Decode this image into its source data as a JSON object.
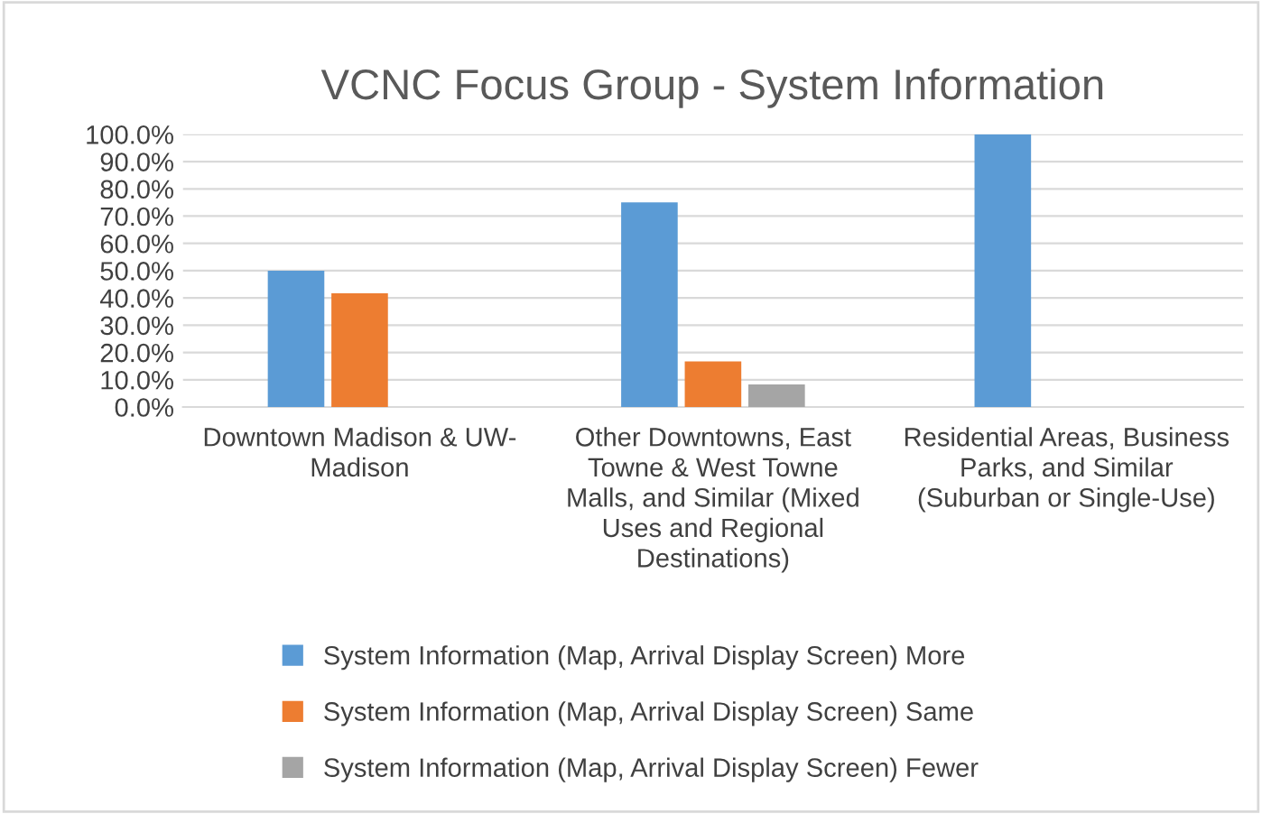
{
  "chart_data": {
    "type": "bar",
    "title": "VCNC Focus Group - System Information",
    "categories": [
      "Downtown Madison & UW-\nMadison",
      "Other Downtowns, East\nTowne & West Towne\nMalls, and Similar (Mixed\nUses and Regional\nDestinations)",
      "Residential Areas, Business\nParks, and Similar\n(Suburban or Single-Use)"
    ],
    "series": [
      {
        "name": "System Information (Map, Arrival Display Screen) More",
        "color": "#5b9bd5",
        "values": [
          50,
          75,
          100
        ]
      },
      {
        "name": "System Information (Map, Arrival Display Screen) Same",
        "color": "#ed7d31",
        "values": [
          41.7,
          16.7,
          0
        ]
      },
      {
        "name": "System Information (Map, Arrival Display Screen) Fewer",
        "color": "#a5a5a5",
        "values": [
          0,
          8.3,
          0
        ]
      }
    ],
    "ylim": [
      0,
      100
    ],
    "yticks": [
      {
        "value": 0,
        "label": "0.0%"
      },
      {
        "value": 10,
        "label": "10.0%"
      },
      {
        "value": 20,
        "label": "20.0%"
      },
      {
        "value": 30,
        "label": "30.0%"
      },
      {
        "value": 40,
        "label": "40.0%"
      },
      {
        "value": 50,
        "label": "50.0%"
      },
      {
        "value": 60,
        "label": "60.0%"
      },
      {
        "value": 70,
        "label": "70.0%"
      },
      {
        "value": 80,
        "label": "80.0%"
      },
      {
        "value": 90,
        "label": "90.0%"
      },
      {
        "value": 100,
        "label": "100.0%"
      }
    ],
    "grid": "y",
    "legend": "bottom"
  }
}
